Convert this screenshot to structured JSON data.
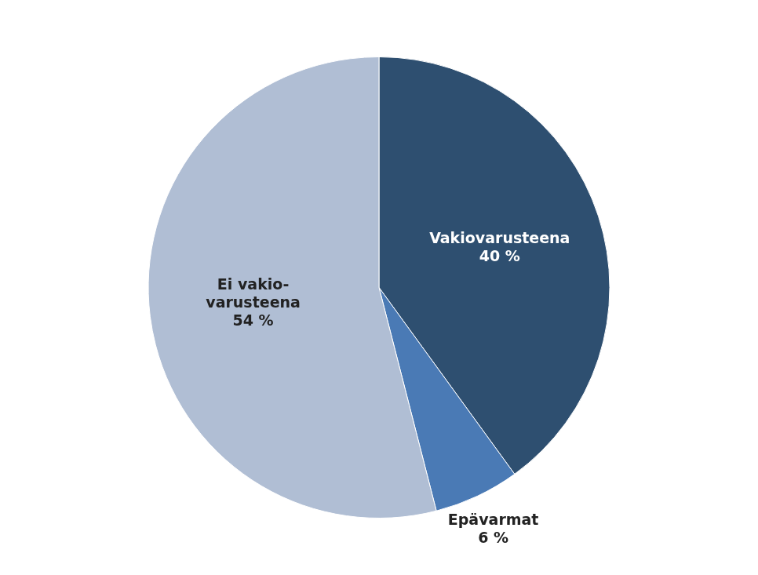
{
  "chart_data": {
    "type": "pie",
    "categories": [
      "Vakiovarusteena",
      "Epävarmat",
      "Ei vakio-\nvarusteena"
    ],
    "values": [
      40,
      6,
      54
    ],
    "value_labels": [
      "40 %",
      "6 %",
      "54 %"
    ],
    "colors": [
      "#2e4f70",
      "#4a7ab5",
      "#b0bed4"
    ],
    "data_labels": true
  }
}
